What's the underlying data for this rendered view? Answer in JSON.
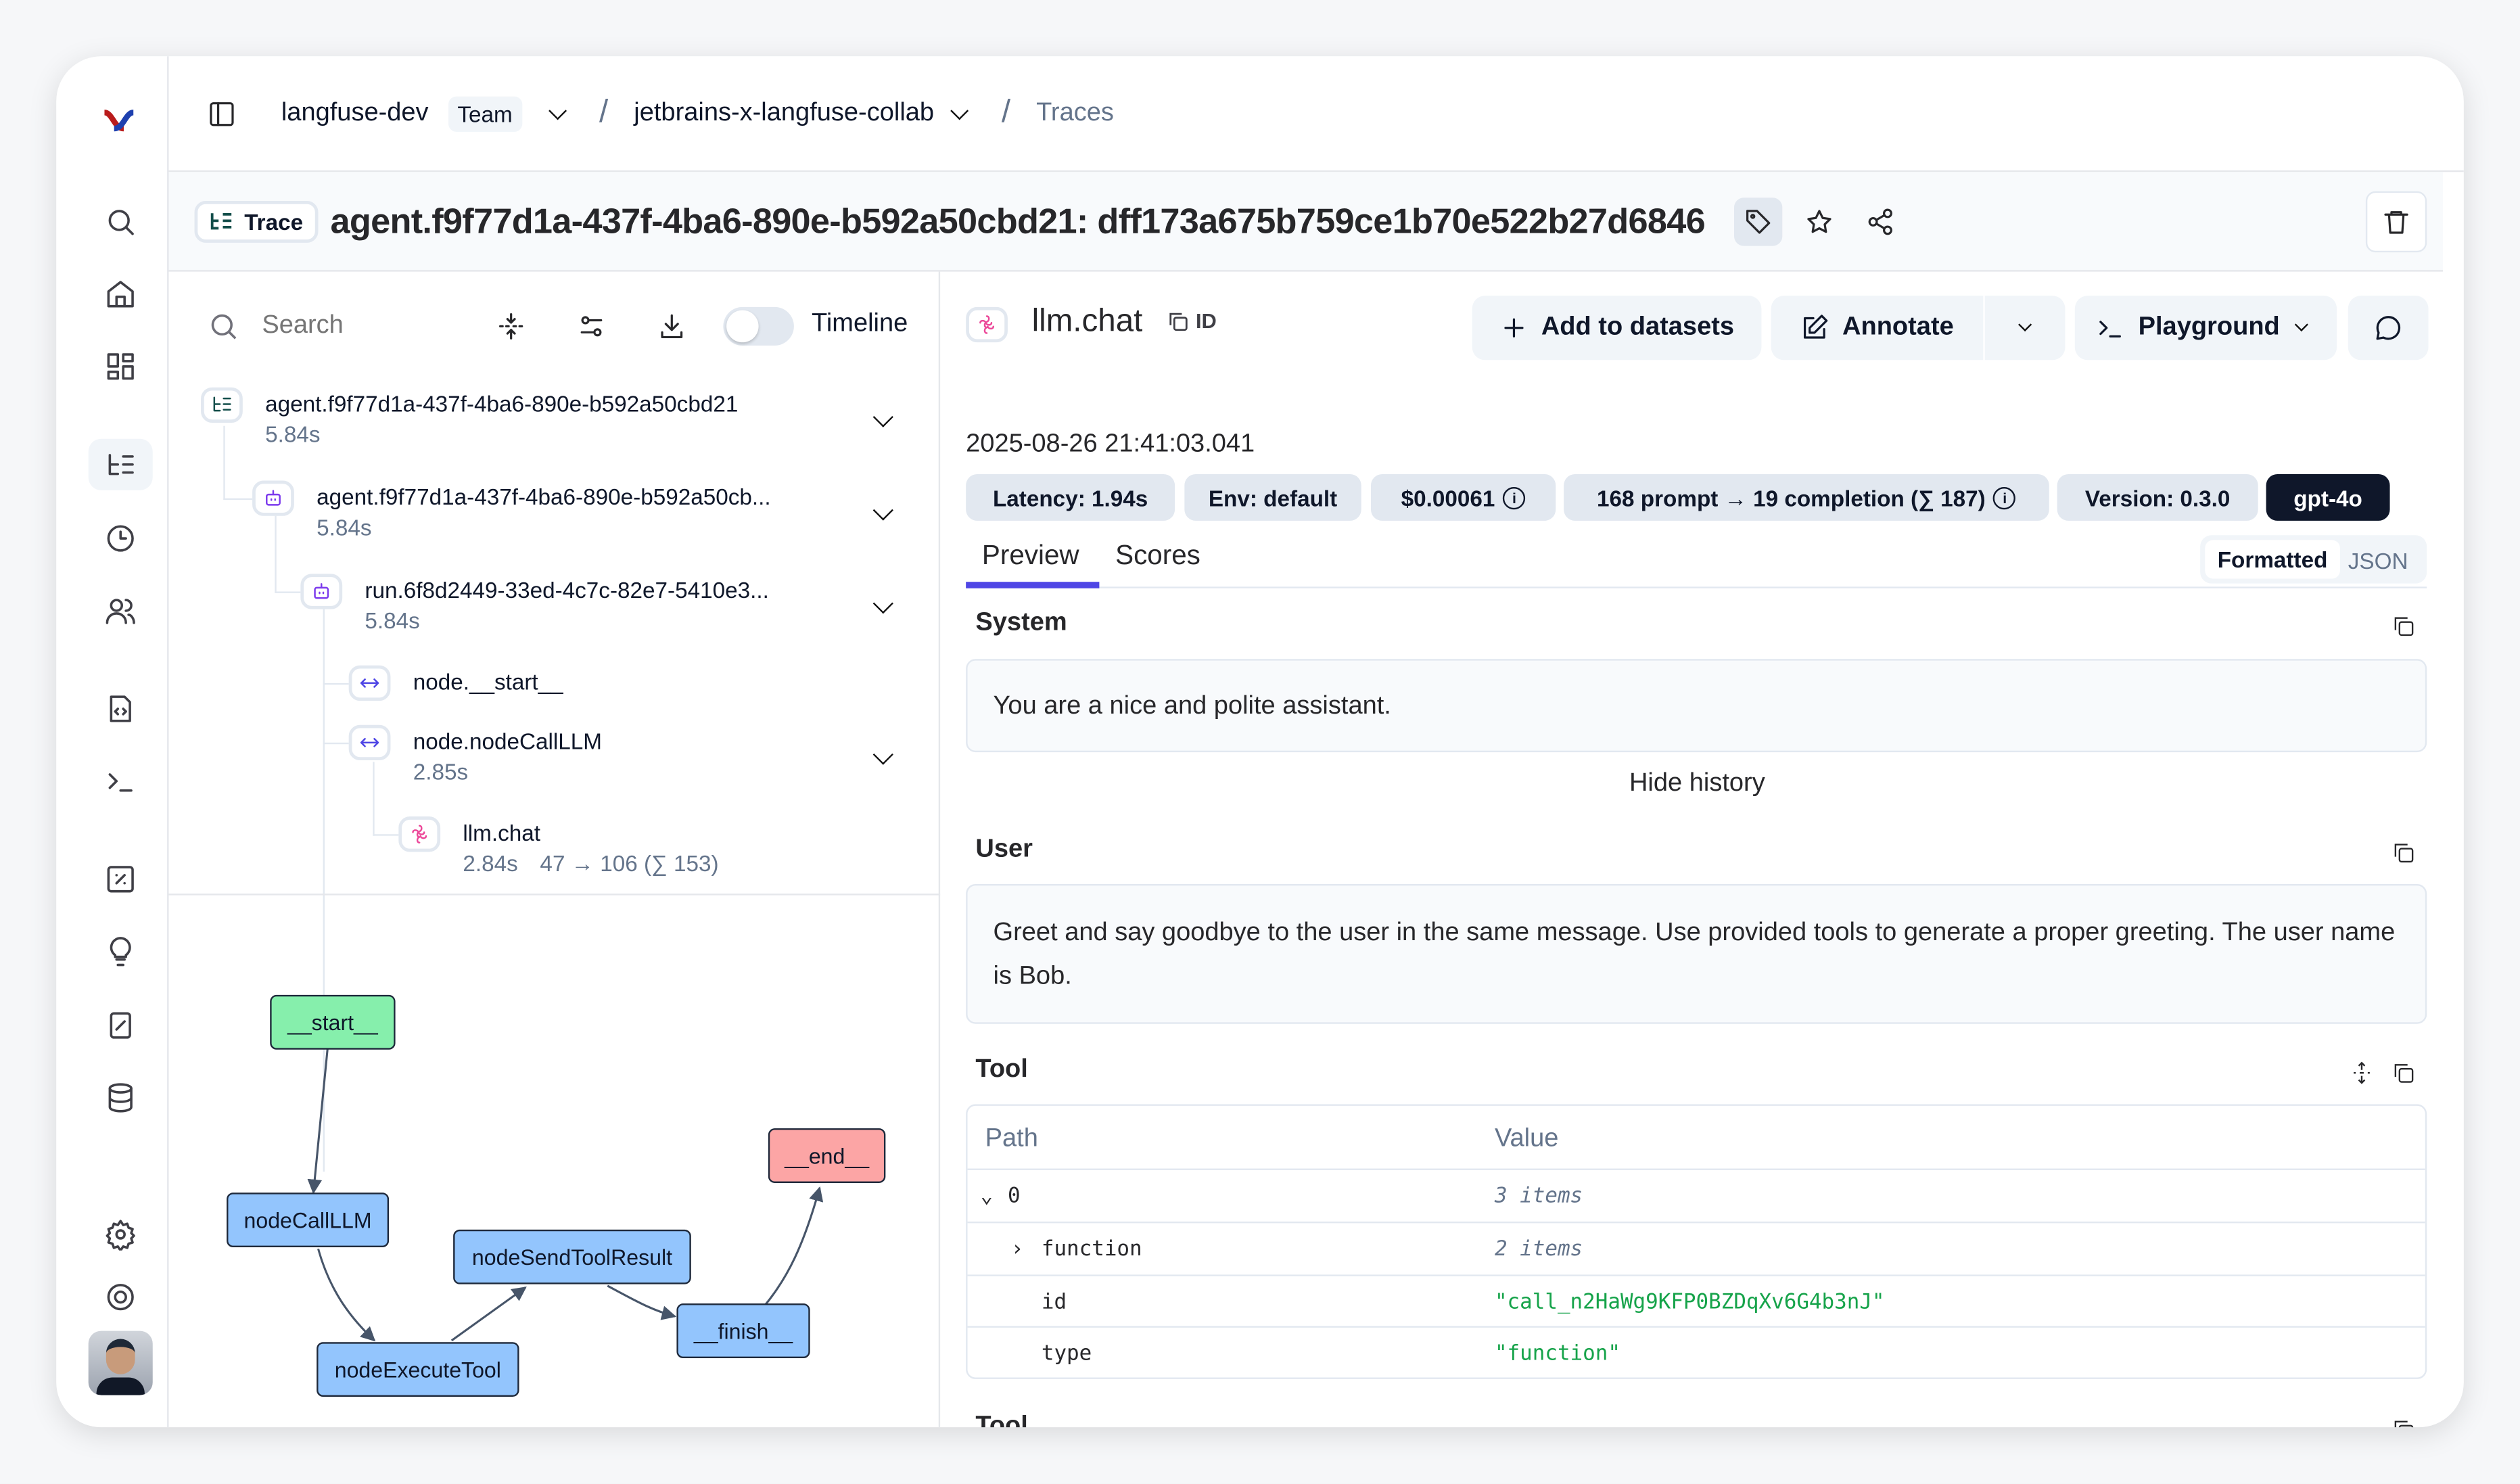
{
  "breadcrumb": {
    "org": "langfuse-dev",
    "org_badge": "Team",
    "project": "jetbrains-x-langfuse-collab",
    "page": "Traces"
  },
  "sidebar": {
    "items": [
      "search-icon",
      "home-icon",
      "dashboard-icon",
      "traces-icon",
      "sessions-icon",
      "users-icon",
      "prompts-icon",
      "playground-icon",
      "evaluations-icon",
      "ideas-icon",
      "annotation-icon",
      "datasets-icon",
      "settings-icon",
      "support-icon"
    ],
    "active": "traces-icon"
  },
  "trace": {
    "badge": "Trace",
    "title": "agent.f9f77d1a-437f-4ba6-890e-b592a50cbd21: dff173a675b759ce1b70e522b27d6846"
  },
  "toolbar": {
    "search_placeholder": "Search",
    "timeline_label": "Timeline",
    "timeline_on": false
  },
  "tree": [
    {
      "name": "agent.f9f77d1a-437f-4ba6-890e-b592a50cbd21",
      "meta": "5.84s",
      "type": "trace"
    },
    {
      "name": "agent.f9f77d1a-437f-4ba6-890e-b592a50cb...",
      "meta": "5.84s",
      "type": "agent"
    },
    {
      "name": "run.6f8d2449-33ed-4c7c-82e7-5410e3...",
      "meta": "5.84s",
      "type": "agent"
    },
    {
      "name": "node.__start__",
      "meta": "",
      "type": "span"
    },
    {
      "name": "node.nodeCallLLM",
      "meta": "2.85s",
      "type": "span"
    },
    {
      "name": "llm.chat",
      "meta": "2.84s",
      "tokens": "47 → 106 (∑ 153)",
      "type": "generation"
    }
  ],
  "graph": {
    "nodes": [
      "__start__",
      "nodeCallLLM",
      "nodeExecuteTool",
      "nodeSendToolResult",
      "__finish__",
      "__end__"
    ],
    "colors": {
      "start": "#86efac",
      "end": "#fca5a5",
      "node": "#93c5fd"
    }
  },
  "detail": {
    "name": "llm.chat",
    "id_label": "ID",
    "timestamp": "2025-08-26 21:41:03.041",
    "buttons": {
      "add": "Add to datasets",
      "annotate": "Annotate",
      "playground": "Playground"
    },
    "pills": {
      "latency": "Latency: 1.94s",
      "env": "Env: default",
      "cost": "$0.00061",
      "tokens": "168 prompt → 19 completion (∑ 187)",
      "version": "Version: 0.3.0",
      "model": "gpt-4o"
    },
    "tabs": [
      "Preview",
      "Scores"
    ],
    "active_tab": "Preview",
    "view_toggle": [
      "Formatted",
      "JSON"
    ],
    "active_view": "Formatted",
    "system_label": "System",
    "system_text": "You are a nice and polite assistant.",
    "hide_history": "Hide history",
    "user_label": "User",
    "user_text": "Greet and say goodbye to the user in the same message. Use provided tools to generate a proper greeting. The user name is Bob.",
    "tool_label": "Tool",
    "tool2_label": "Tool",
    "table": {
      "headers": [
        "Path",
        "Value"
      ],
      "rows": [
        {
          "path": "0",
          "value": "3 items",
          "kind": "count",
          "toggle": "expanded"
        },
        {
          "path": "function",
          "value": "2 items",
          "kind": "count",
          "toggle": "collapsed"
        },
        {
          "path": "id",
          "value": "\"call_n2HaWg9KFP0BZDqXv6G4b3nJ\"",
          "kind": "string"
        },
        {
          "path": "type",
          "value": "\"function\"",
          "kind": "string"
        }
      ]
    }
  },
  "colors": {
    "accent": "#4f46e5",
    "string": "#16a34a",
    "muted": "#64748b",
    "model_pill": "#0f172a"
  }
}
